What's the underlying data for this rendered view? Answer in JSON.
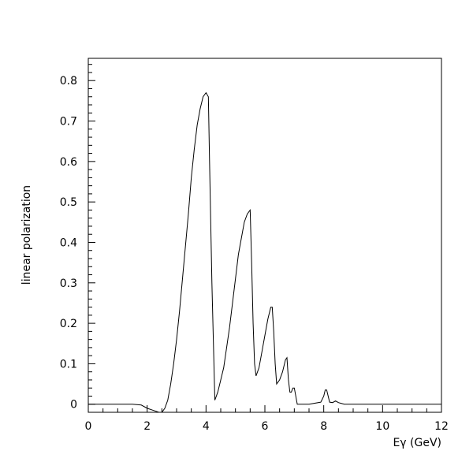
{
  "chart_data": {
    "type": "line",
    "title": "",
    "xlabel": "Eγ (GeV)",
    "ylabel": "linear polarization",
    "xlim": [
      0,
      12
    ],
    "ylim": [
      -0.02,
      0.855
    ],
    "grid": false,
    "legend": "none",
    "x_ticks": [
      0,
      2,
      4,
      6,
      8,
      10,
      12
    ],
    "x_tick_labels": [
      "0",
      "2",
      "4",
      "6",
      "8",
      "10",
      "12"
    ],
    "y_ticks": [
      0,
      0.1,
      0.2,
      0.3,
      0.4,
      0.5,
      0.6,
      0.7,
      0.8
    ],
    "y_tick_labels": [
      "0",
      "0.1",
      "0.2",
      "0.3",
      "0.4",
      "0.5",
      "0.6",
      "0.7",
      "0.8"
    ],
    "colors": {
      "line": "#000000",
      "frame": "#000000"
    },
    "series": [
      {
        "x": [
          0,
          1.5,
          1.8,
          2.0,
          2.2,
          2.4,
          2.5,
          2.6,
          2.7,
          2.8,
          2.9,
          3.0,
          3.1,
          3.2,
          3.3,
          3.4,
          3.5,
          3.6,
          3.7,
          3.8,
          3.9,
          4.0,
          4.08,
          4.12,
          4.2,
          4.3,
          4.4,
          4.5,
          4.6,
          4.7,
          4.8,
          4.9,
          5.0,
          5.1,
          5.2,
          5.3,
          5.4,
          5.5,
          5.55,
          5.6,
          5.65,
          5.7,
          5.8,
          5.9,
          6.0,
          6.1,
          6.2,
          6.25,
          6.3,
          6.35,
          6.4,
          6.5,
          6.6,
          6.7,
          6.75,
          6.8,
          6.85,
          6.9,
          6.95,
          7.0,
          7.05,
          7.1,
          7.5,
          7.9,
          8.0,
          8.05,
          8.1,
          8.15,
          8.2,
          8.3,
          8.4,
          8.5,
          8.6,
          8.7,
          9.0,
          12.0
        ],
        "y": [
          0,
          0,
          -0.002,
          -0.01,
          -0.015,
          -0.02,
          -0.02,
          -0.01,
          0.01,
          0.05,
          0.1,
          0.16,
          0.23,
          0.31,
          0.39,
          0.47,
          0.56,
          0.63,
          0.69,
          0.73,
          0.76,
          0.77,
          0.76,
          0.6,
          0.3,
          0.01,
          0.03,
          0.06,
          0.09,
          0.14,
          0.19,
          0.25,
          0.31,
          0.37,
          0.41,
          0.45,
          0.47,
          0.48,
          0.35,
          0.2,
          0.1,
          0.07,
          0.09,
          0.13,
          0.17,
          0.21,
          0.24,
          0.24,
          0.18,
          0.1,
          0.05,
          0.06,
          0.08,
          0.11,
          0.115,
          0.06,
          0.03,
          0.03,
          0.04,
          0.04,
          0.02,
          0.0,
          0.0,
          0.005,
          0.02,
          0.035,
          0.035,
          0.02,
          0.005,
          0.004,
          0.008,
          0.004,
          0.002,
          0.0,
          0.0,
          0.0
        ]
      }
    ]
  }
}
